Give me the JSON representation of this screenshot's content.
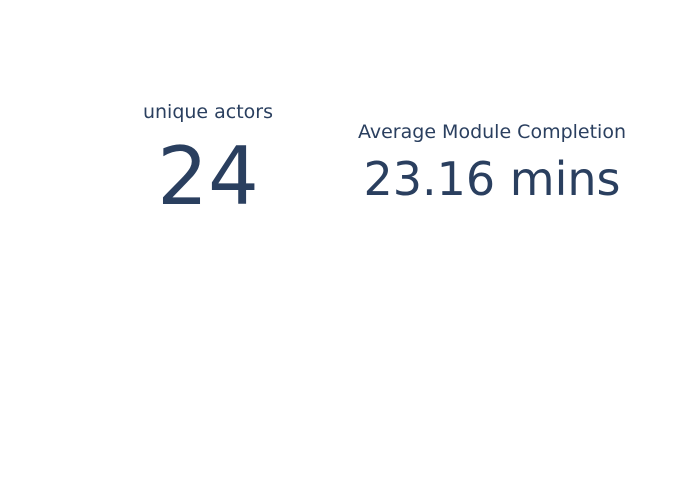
{
  "colors": {
    "text": "#2a3f5f",
    "background": "#ffffff"
  },
  "chart_data": [
    {
      "type": "indicator",
      "title": "unique actors",
      "value": 24,
      "display": "24"
    },
    {
      "type": "indicator",
      "title": "Average Module Completion",
      "value": 23.16,
      "display": "23.16 mins"
    }
  ]
}
